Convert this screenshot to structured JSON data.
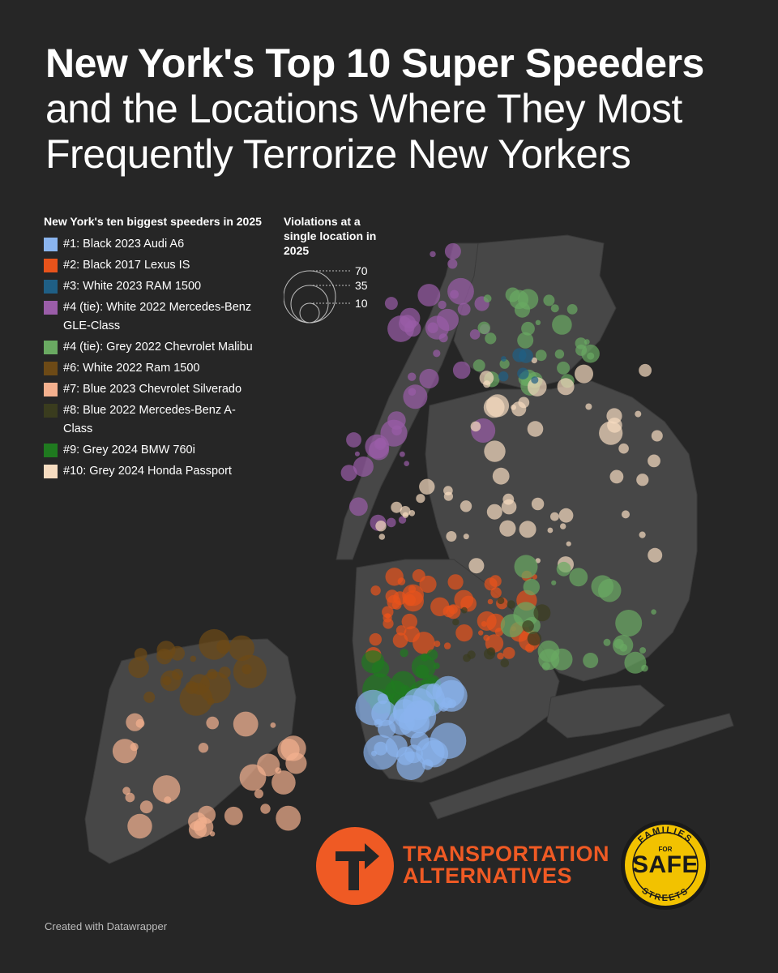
{
  "title": {
    "line1": "New York's Top 10 Super Speeders",
    "line2": "and the Locations Where They Most",
    "line3": "Frequently Terrorize New Yorkers"
  },
  "legend": {
    "heading": "New York's ten biggest speeders in 2025",
    "items": [
      {
        "label": "#1: Black 2023 Audi A6",
        "color": "#8ab4ee"
      },
      {
        "label": "#2: Black 2017 Lexus IS",
        "color": "#e8531b"
      },
      {
        "label": "#3: White 2023 RAM 1500",
        "color": "#1f5f85"
      },
      {
        "label": "#4 (tie): White 2022 Mercedes-Benz GLE-Class",
        "color": "#9a5da8"
      },
      {
        "label": "#4 (tie): Grey 2022 Chevrolet Malibu",
        "color": "#6aaa62"
      },
      {
        "label": "#6: White 2022 Ram 1500",
        "color": "#6d4a16"
      },
      {
        "label": "#7: Blue 2023 Chevrolet Silverado",
        "color": "#f4b08e"
      },
      {
        "label": "#8: Blue 2022 Mercedes-Benz A-Class",
        "color": "#3a3c1e"
      },
      {
        "label": "#9: Grey 2024 BMW 760i",
        "color": "#1f7a1f"
      },
      {
        "label": "#10: Grey 2024 Honda Passport",
        "color": "#f6dcc0"
      }
    ]
  },
  "size_legend": {
    "heading": "Violations at a single location in 2025",
    "values": [
      70,
      35,
      10
    ]
  },
  "logos": {
    "ta_line1": "TRANSPORTATION",
    "ta_line2": "ALTERNATIVES",
    "ffss_top": "FAMILIES",
    "ffss_for": "FOR",
    "ffss_safe": "SAFE",
    "ffss_bottom": "STREETS"
  },
  "footer": "Created with Datawrapper",
  "colors": {
    "background": "#262626",
    "land": "#4a4a4a",
    "ta_orange": "#ef5a24",
    "ffss_yellow": "#f2c200"
  }
}
